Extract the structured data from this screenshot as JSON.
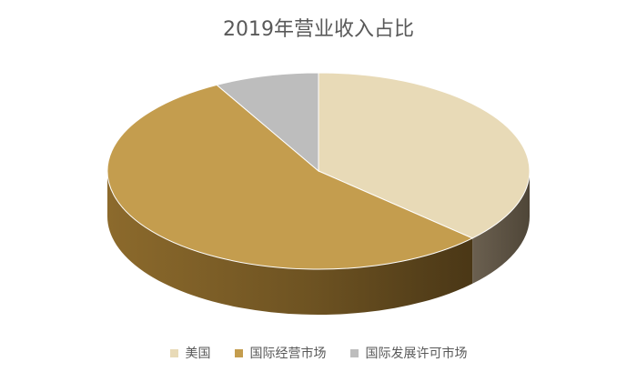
{
  "chart_data": {
    "type": "pie",
    "title": "2019年营业收入占比",
    "categories": [
      "美国",
      "国际经营市场",
      "国际发展许可市场"
    ],
    "values": [
      37,
      55,
      8
    ],
    "colors": [
      "#E8DAB7",
      "#C49D4E",
      "#BDBDBD"
    ],
    "legend_position": "bottom",
    "style": "3d"
  }
}
